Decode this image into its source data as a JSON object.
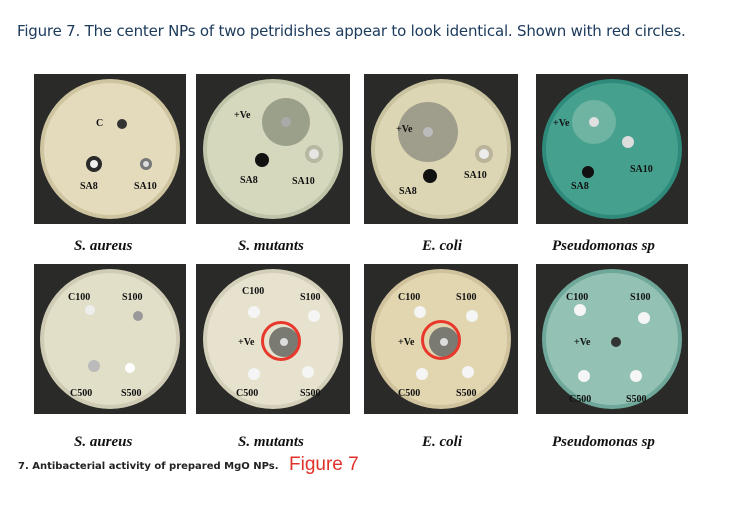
{
  "caption": "Figure 7. The center NPs of two petridishes appear to look identical. Shown with red circles.",
  "top_row": {
    "organisms": [
      "S. aureus",
      "S. mutants",
      "E. coli",
      "Pseudomonas sp"
    ],
    "well_labels": {
      "d1": [
        "C",
        "SA8",
        "SA10"
      ],
      "d2": [
        "+Ve",
        "SA8",
        "SA10"
      ],
      "d3": [
        "+Ve",
        "SA10",
        "SA8"
      ],
      "d4": [
        "+Ve",
        "SA10",
        "SA8"
      ]
    }
  },
  "bottom_row": {
    "organisms": [
      "S. aureus",
      "S. mutants",
      "E. coli",
      "Pseudomonas sp"
    ],
    "well_labels": {
      "d1": [
        "C100",
        "S100",
        "C500",
        "S500"
      ],
      "d2": [
        "C100",
        "S100",
        "+Ve",
        "C500",
        "S500"
      ],
      "d3": [
        "C100",
        "S100",
        "+Ve",
        "C500",
        "S500"
      ],
      "d4": [
        "C100",
        "S100",
        "+Ve",
        "C500",
        "S500"
      ]
    }
  },
  "footnote": "7. Antibacterial activity of prepared MgO NPs.",
  "figure_label": "Figure 7",
  "colors": {
    "caption": "#1b3a5c",
    "highlight": "#e8382c",
    "figure_label": "#e0302a"
  }
}
